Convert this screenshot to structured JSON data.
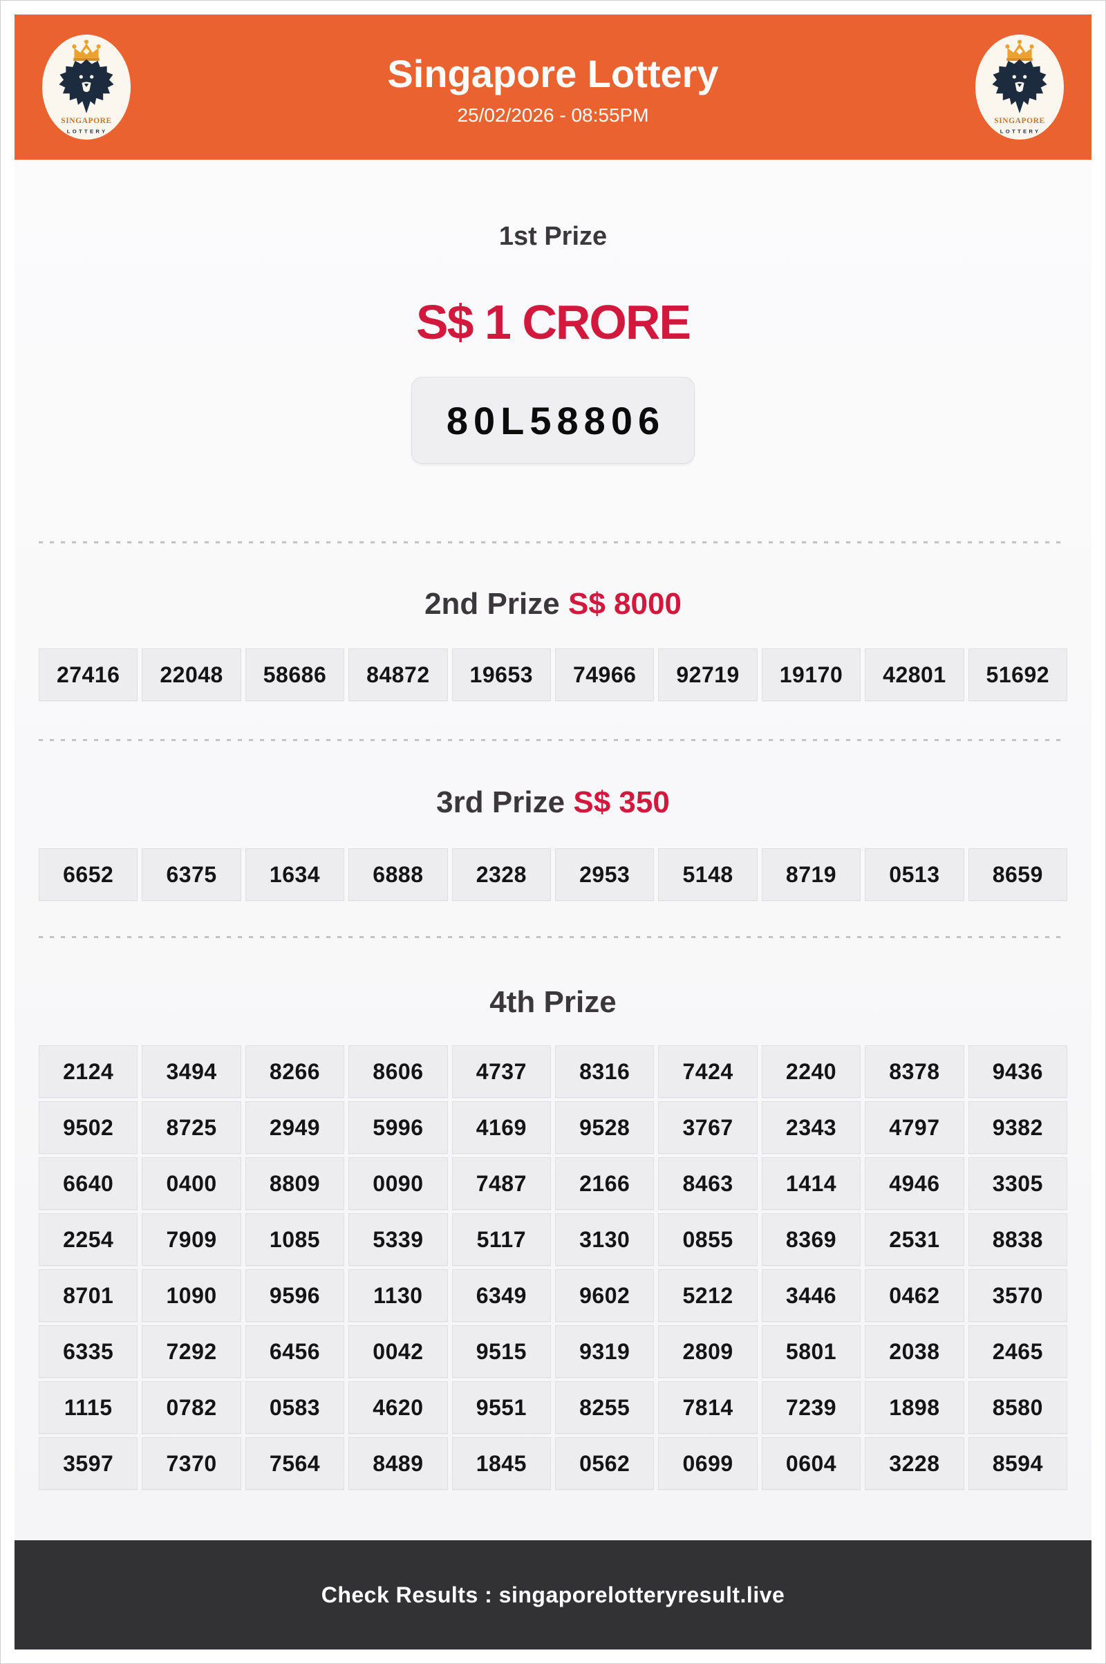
{
  "colors": {
    "header_orange": "#E96230",
    "prize_red": "#D2183C",
    "heading_dark": "#3A383B",
    "footer_dark": "#323234",
    "cell_bg": "#EDEDF0",
    "logo_navy": "#1C2C3E",
    "logo_gold": "#EDA22F"
  },
  "header": {
    "title": "Singapore Lottery",
    "draw_datetime": "25/02/2026 - 08:55PM",
    "logo": {
      "line1": "SINGAPORE",
      "line2": "LOTTERY"
    }
  },
  "first_prize": {
    "label": "1st Prize",
    "amount": "S$ 1 CRORE",
    "winning_number": "80L58806"
  },
  "second_prize": {
    "label": "2nd Prize",
    "amount": "S$ 8000",
    "numbers": [
      "27416",
      "22048",
      "58686",
      "84872",
      "19653",
      "74966",
      "92719",
      "19170",
      "42801",
      "51692"
    ]
  },
  "third_prize": {
    "label": "3rd Prize",
    "amount": "S$ 350",
    "numbers": [
      "6652",
      "6375",
      "1634",
      "6888",
      "2328",
      "2953",
      "5148",
      "8719",
      "0513",
      "8659"
    ]
  },
  "fourth_prize": {
    "label": "4th Prize",
    "rows": [
      [
        "2124",
        "3494",
        "8266",
        "8606",
        "4737",
        "8316",
        "7424",
        "2240",
        "8378",
        "9436"
      ],
      [
        "9502",
        "8725",
        "2949",
        "5996",
        "4169",
        "9528",
        "3767",
        "2343",
        "4797",
        "9382"
      ],
      [
        "6640",
        "0400",
        "8809",
        "0090",
        "7487",
        "2166",
        "8463",
        "1414",
        "4946",
        "3305"
      ],
      [
        "2254",
        "7909",
        "1085",
        "5339",
        "5117",
        "3130",
        "0855",
        "8369",
        "2531",
        "8838"
      ],
      [
        "8701",
        "1090",
        "9596",
        "1130",
        "6349",
        "9602",
        "5212",
        "3446",
        "0462",
        "3570"
      ],
      [
        "6335",
        "7292",
        "6456",
        "0042",
        "9515",
        "9319",
        "2809",
        "5801",
        "2038",
        "2465"
      ],
      [
        "1115",
        "0782",
        "0583",
        "4620",
        "9551",
        "8255",
        "7814",
        "7239",
        "1898",
        "8580"
      ],
      [
        "3597",
        "7370",
        "7564",
        "8489",
        "1845",
        "0562",
        "0699",
        "0604",
        "3228",
        "8594"
      ]
    ]
  },
  "footer": {
    "text": "Check Results : singaporelotteryresult.live"
  }
}
